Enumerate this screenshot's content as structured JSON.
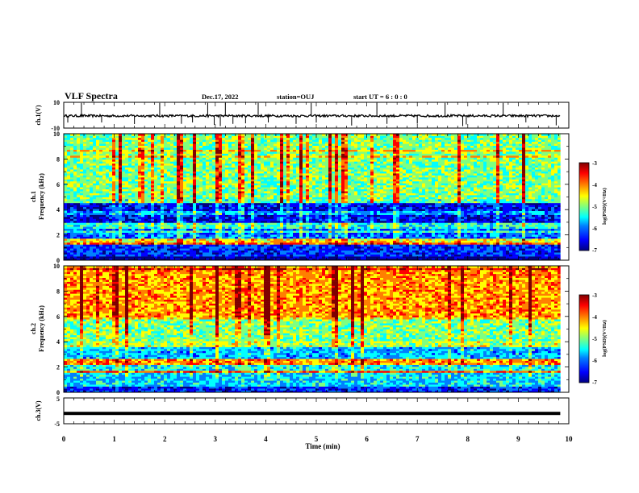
{
  "header": {
    "title": "VLF Spectra",
    "date": "Dec.17, 2022",
    "station": "station=OUJ",
    "start_ut": "start  UT =   6 : 0  : 0"
  },
  "colors": {
    "scale": [
      "#00007f",
      "#0000ff",
      "#007fff",
      "#00ffff",
      "#7fff7f",
      "#ffff00",
      "#ff7f00",
      "#ff0000",
      "#7f0000"
    ]
  },
  "chart_data": [
    {
      "type": "line",
      "panel": "ch1-waveform",
      "ylabel": "ch.1(V)",
      "yticks": [
        "10",
        "-10"
      ],
      "ylim": [
        -10,
        10
      ],
      "xlim": [
        0,
        10
      ],
      "baseline": -0.5,
      "spikes_min": [
        0.08,
        0.35,
        0.75,
        1.4,
        1.9,
        2.33,
        2.55,
        2.85,
        2.98,
        3.1,
        3.2,
        3.35,
        3.6,
        3.85,
        4.05,
        4.6,
        4.9,
        5.0,
        5.7,
        6.2,
        6.4,
        7.0,
        7.55,
        7.9,
        7.97,
        8.7,
        9.15,
        9.75
      ]
    },
    {
      "type": "heatmap",
      "panel": "ch1-spectrogram",
      "ylabel": "ch.1",
      "ylabel2": "Frequency (kHz)",
      "yticks": [
        "0",
        "2",
        "4",
        "6",
        "8",
        "10"
      ],
      "ylim": [
        0,
        10
      ],
      "xlim": [
        0,
        9.83
      ],
      "colorbar": {
        "label": "log(PSD)(V²/Hz)",
        "range": [
          -7,
          -3
        ],
        "ticks": [
          "-3",
          "-4",
          "-5",
          "-6",
          "-7"
        ]
      },
      "bands_khz": [
        {
          "range": [
            0,
            0.3
          ],
          "level": -6.8
        },
        {
          "range": [
            0.3,
            1.3
          ],
          "level": -6.2
        },
        {
          "range": [
            1.3,
            1.7
          ],
          "level": -4.6
        },
        {
          "range": [
            1.7,
            2.6
          ],
          "level": -6.0
        },
        {
          "range": [
            2.6,
            3.0
          ],
          "level": -5.3
        },
        {
          "range": [
            3.0,
            4.6
          ],
          "level": -6.4
        },
        {
          "range": [
            4.6,
            4.9
          ],
          "level": -5.2
        },
        {
          "range": [
            4.9,
            10.0
          ],
          "level": -5.0
        }
      ]
    },
    {
      "type": "heatmap",
      "panel": "ch2-spectrogram",
      "ylabel": "ch.2",
      "ylabel2": "Frequency (kHz)",
      "yticks": [
        "0",
        "2",
        "4",
        "6",
        "8",
        "10"
      ],
      "ylim": [
        0,
        10
      ],
      "xlim": [
        0,
        9.83
      ],
      "colorbar": {
        "label": "log(PSD)(V²/Hz)",
        "range": [
          -7,
          -3
        ],
        "ticks": [
          "-3",
          "-4",
          "-5",
          "-6",
          "-7"
        ]
      },
      "bands_khz": [
        {
          "range": [
            0,
            0.5
          ],
          "level": -6.4
        },
        {
          "range": [
            0.5,
            1.5
          ],
          "level": -5.8
        },
        {
          "range": [
            1.5,
            1.7
          ],
          "level": -4.2
        },
        {
          "range": [
            1.7,
            2.2
          ],
          "level": -5.6
        },
        {
          "range": [
            2.2,
            2.6
          ],
          "level": -4.4
        },
        {
          "range": [
            2.6,
            3.6
          ],
          "level": -5.9
        },
        {
          "range": [
            3.6,
            4.1
          ],
          "level": -5.0
        },
        {
          "range": [
            4.1,
            6.0
          ],
          "level": -5.2
        },
        {
          "range": [
            6.0,
            10.0
          ],
          "level": -4.4
        }
      ]
    },
    {
      "type": "line",
      "panel": "ch3-waveform",
      "ylabel": "ch.3(V)",
      "yticks": [
        "5",
        "-5"
      ],
      "ylim": [
        -5,
        5
      ],
      "xlim": [
        0,
        10
      ],
      "value": -1.0
    }
  ],
  "xaxis": {
    "label": "Time (min)",
    "ticks": [
      "0",
      "1",
      "2",
      "3",
      "4",
      "5",
      "6",
      "7",
      "8",
      "9",
      "10"
    ]
  }
}
